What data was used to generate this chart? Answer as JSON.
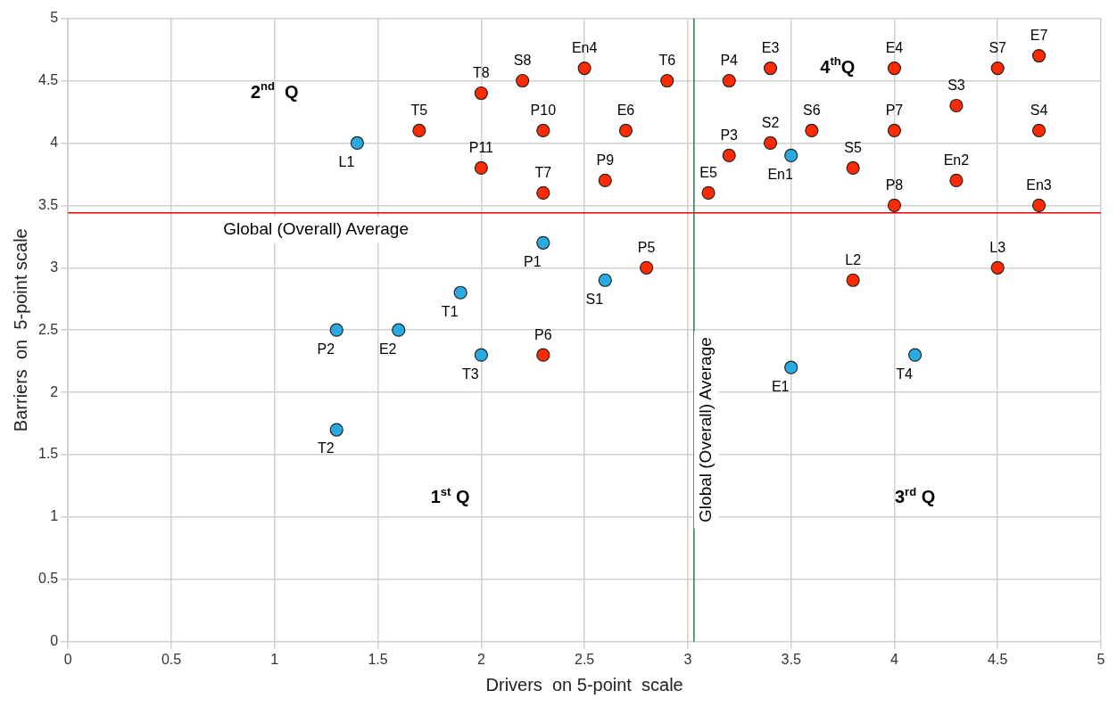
{
  "chart_data": {
    "type": "scatter",
    "xlabel": "Drivers  on 5-point  scale",
    "ylabel": "Barriers  on  5-point scale",
    "xlim": [
      0,
      5
    ],
    "ylim": [
      0,
      5
    ],
    "xticks": [
      0,
      0.5,
      1,
      1.5,
      2,
      2.5,
      3,
      3.5,
      4,
      4.5,
      5
    ],
    "yticks": [
      0,
      0.5,
      1,
      1.5,
      2,
      2.5,
      3,
      3.5,
      4,
      4.5,
      5
    ],
    "grid": true,
    "legend": false,
    "marker": "circle",
    "series": [
      {
        "color": "#29abe2",
        "x": [
          1.4,
          2.3,
          2.6,
          1.9,
          1.3,
          1.6,
          2.0,
          1.3,
          3.5,
          3.5,
          4.1
        ],
        "values": [
          4.0,
          3.2,
          2.9,
          2.8,
          2.5,
          2.5,
          2.3,
          1.7,
          3.9,
          2.2,
          2.3
        ],
        "value_labels": [
          "L1",
          "P1",
          "S1",
          "T1",
          "P2",
          "E2",
          "T3",
          "T2",
          "En1",
          "E1",
          "T4"
        ]
      },
      {
        "color": "#ff2a00",
        "x": [
          1.7,
          2.0,
          2.2,
          2.5,
          2.9,
          3.2,
          3.4,
          4.0,
          4.5,
          4.7,
          4.3,
          2.3,
          2.7,
          2.0,
          2.3,
          2.6,
          3.2,
          3.4,
          3.6,
          4.0,
          4.7,
          3.1,
          3.8,
          4.3,
          4.0,
          4.7,
          2.8,
          3.8,
          4.5,
          2.3
        ],
        "values": [
          4.1,
          4.4,
          4.5,
          4.6,
          4.5,
          4.5,
          4.6,
          4.6,
          4.6,
          4.7,
          4.3,
          4.1,
          4.1,
          3.8,
          3.6,
          3.7,
          3.9,
          4.0,
          4.1,
          4.1,
          4.1,
          3.6,
          3.8,
          3.7,
          3.5,
          3.5,
          3.0,
          2.9,
          3.0,
          2.3
        ],
        "value_labels": [
          "T5",
          "T8",
          "S8",
          "En4",
          "T6",
          "P4",
          "E3",
          "E4",
          "S7",
          "E7",
          "S3",
          "P10",
          "E6",
          "P11",
          "T7",
          "P9",
          "P3",
          "S2",
          "S6",
          "P7",
          "S4",
          "E5",
          "S5",
          "En2",
          "P8",
          "En3",
          "P5",
          "L2",
          "L3",
          "P6"
        ]
      }
    ],
    "ref_lines": [
      {
        "axis": "y",
        "value": 3.44,
        "label": "Global (Overall) Average",
        "color": "#e00000"
      },
      {
        "axis": "x",
        "value": 3.03,
        "label": "Global (Overall) Average",
        "color": "#1a8a3a"
      }
    ],
    "annotations": [
      "2$^{nd}$  Q",
      "4$^{th}$Q",
      "1$^{st}$ Q",
      "3$^{rd}$ Q"
    ]
  }
}
